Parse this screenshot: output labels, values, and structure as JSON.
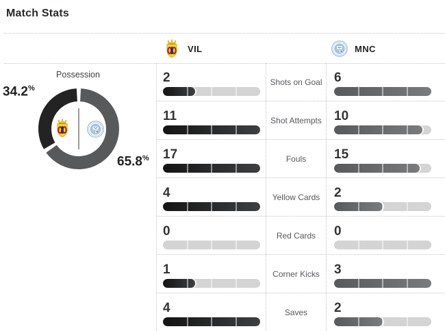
{
  "page": {
    "title": "Match Stats"
  },
  "teams": {
    "home": {
      "abbr": "VIL",
      "crest_icon": "villarreal-crest-icon"
    },
    "away": {
      "abbr": "MNC",
      "crest_icon": "man-city-crest-icon"
    }
  },
  "possession": {
    "label": "Possession",
    "home_pct": "34.2",
    "away_pct": "65.8",
    "percent_symbol": "%"
  },
  "stats": {
    "rows": [
      {
        "label": "Shots on Goal",
        "home": 2,
        "away": 6
      },
      {
        "label": "Shot Attempts",
        "home": 11,
        "away": 10
      },
      {
        "label": "Fouls",
        "home": 17,
        "away": 15
      },
      {
        "label": "Yellow Cards",
        "home": 4,
        "away": 2
      },
      {
        "label": "Red Cards",
        "home": 0,
        "away": 0
      },
      {
        "label": "Corner Kicks",
        "home": 1,
        "away": 3
      },
      {
        "label": "Saves",
        "home": 4,
        "away": 2
      }
    ]
  },
  "colors": {
    "home_fill_start": "#141414",
    "home_fill_end": "#3d3f41",
    "away_fill_start": "#58595b",
    "away_fill_end": "#7a7b7d",
    "bar_track": "#d4d4d4",
    "possession_home": "#232323",
    "possession_away": "#58595b",
    "dotted_line": "#c3c3c3",
    "divider": "#9b9b9b"
  },
  "chart_data": [
    {
      "type": "pie",
      "style": "donut",
      "title": "Possession",
      "labels": [
        "VIL",
        "MNC"
      ],
      "values": [
        34.2,
        65.8
      ],
      "unit": "percent",
      "colors": [
        "#232323",
        "#58595b"
      ],
      "annotations": [
        "34.2%",
        "65.8%"
      ],
      "legend_position": "center-icons"
    },
    {
      "type": "bar",
      "orientation": "horizontal",
      "categories": [
        "Shots on Goal",
        "Shot Attempts",
        "Fouls",
        "Yellow Cards",
        "Red Cards",
        "Corner Kicks",
        "Saves"
      ],
      "series": [
        {
          "name": "VIL",
          "values": [
            2,
            11,
            17,
            4,
            0,
            1,
            4
          ]
        },
        {
          "name": "MNC",
          "values": [
            6,
            10,
            15,
            2,
            0,
            3,
            2
          ]
        }
      ],
      "scaling": "each bar filled proportionally to the max value of its row pair",
      "grid": "dotted separators",
      "legend_position": "top"
    }
  ]
}
